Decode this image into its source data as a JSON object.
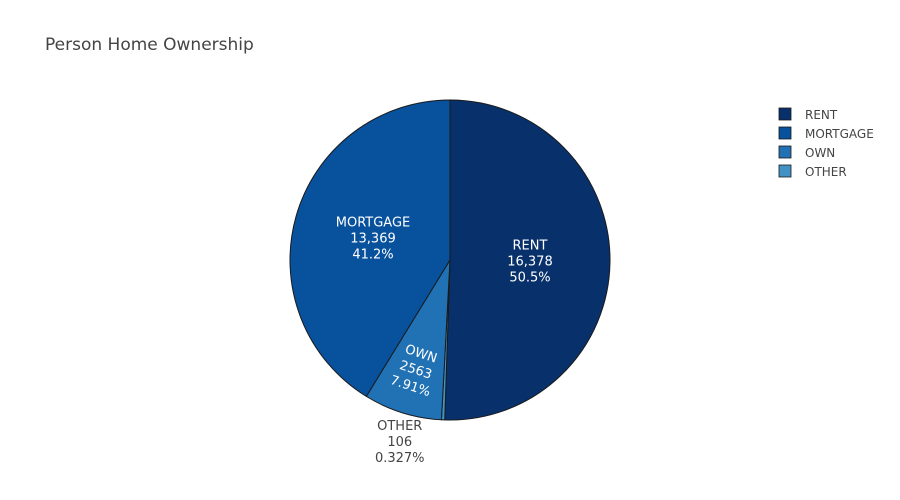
{
  "chart_data": {
    "type": "pie",
    "title": "Person Home Ownership",
    "direction": "clockwise",
    "start_angle_deg": 90,
    "slices": [
      {
        "label": "RENT",
        "value": 16378,
        "value_text": "16,378",
        "percent_text": "50.5%",
        "color": "#08306b",
        "text_color": "#ffffff",
        "label_position": "inside"
      },
      {
        "label": "OTHER",
        "value": 106,
        "value_text": "106",
        "percent_text": "0.327%",
        "color": "#4292c6",
        "text_color": "#444444",
        "label_position": "outside"
      },
      {
        "label": "OWN",
        "value": 2563,
        "value_text": "2563",
        "percent_text": "7.91%",
        "color": "#2171b5",
        "text_color": "#ffffff",
        "label_position": "inside"
      },
      {
        "label": "MORTGAGE",
        "value": 13369,
        "value_text": "13,369",
        "percent_text": "41.2%",
        "color": "#08519c",
        "text_color": "#ffffff",
        "label_position": "inside"
      }
    ],
    "legend": {
      "placement": "top-right",
      "entries": [
        {
          "label": "RENT",
          "color": "#08306b"
        },
        {
          "label": "MORTGAGE",
          "color": "#08519c"
        },
        {
          "label": "OWN",
          "color": "#2171b5"
        },
        {
          "label": "OTHER",
          "color": "#4292c6"
        }
      ]
    }
  }
}
